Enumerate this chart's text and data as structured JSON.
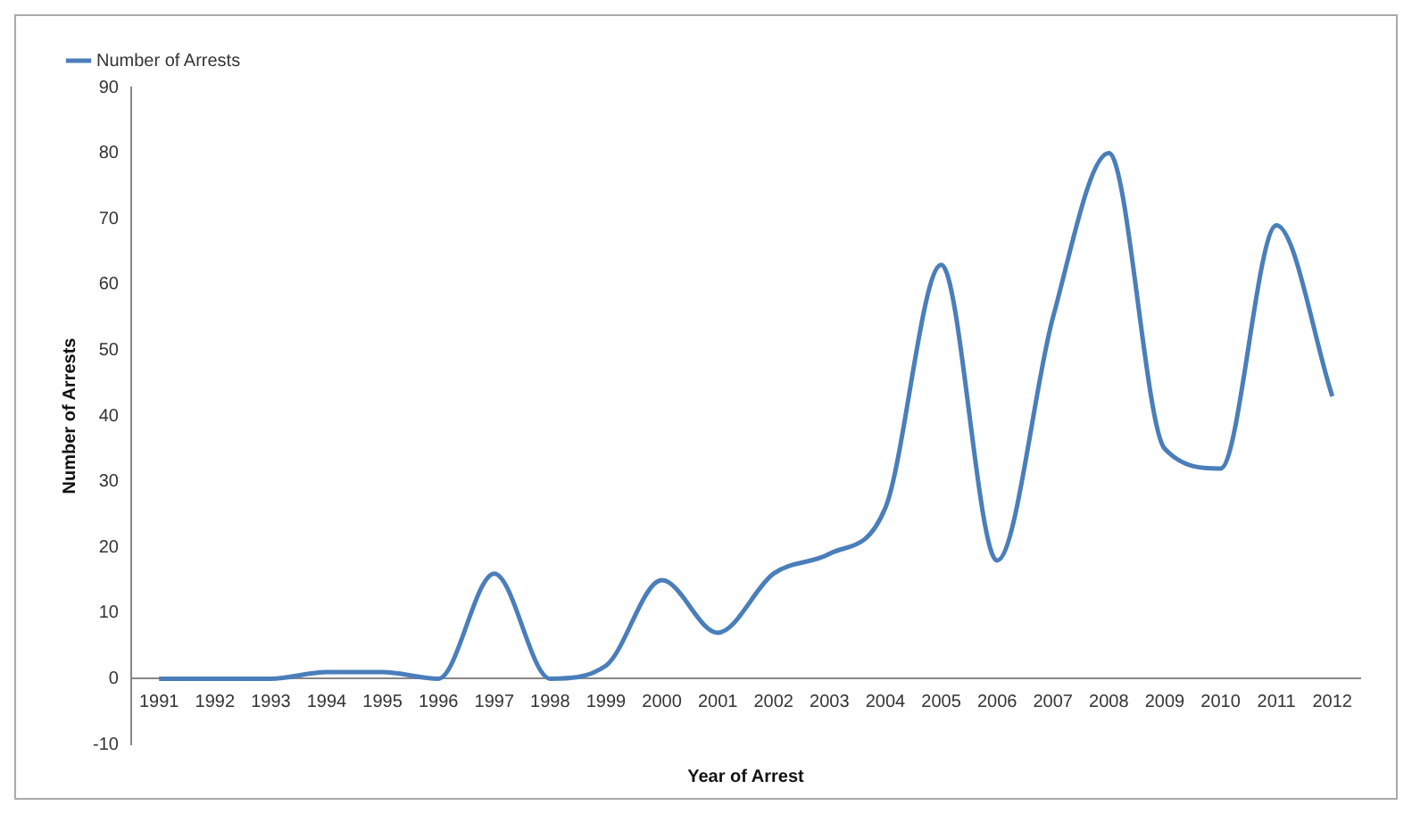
{
  "chart_data": {
    "type": "line",
    "xlabel": "Year of Arrest",
    "ylabel": "Number of Arrests",
    "categories": [
      "1991",
      "1992",
      "1993",
      "1994",
      "1995",
      "1996",
      "1997",
      "1998",
      "1999",
      "2000",
      "2001",
      "2002",
      "2003",
      "2004",
      "2005",
      "2006",
      "2007",
      "2008",
      "2009",
      "2010",
      "2011",
      "2012"
    ],
    "series": [
      {
        "name": "Number of Arrests",
        "color": "#4a7ebb",
        "values": [
          0,
          0,
          0,
          1,
          1,
          0,
          16,
          0,
          2,
          15,
          7,
          16,
          19,
          26,
          63,
          18,
          55,
          80,
          35,
          32,
          69,
          43
        ]
      }
    ],
    "ylim": [
      -10,
      90
    ],
    "yticks": [
      -10,
      0,
      10,
      20,
      30,
      40,
      50,
      60,
      70,
      80,
      90
    ],
    "grid": false,
    "legend": "top left",
    "marker": "none"
  }
}
